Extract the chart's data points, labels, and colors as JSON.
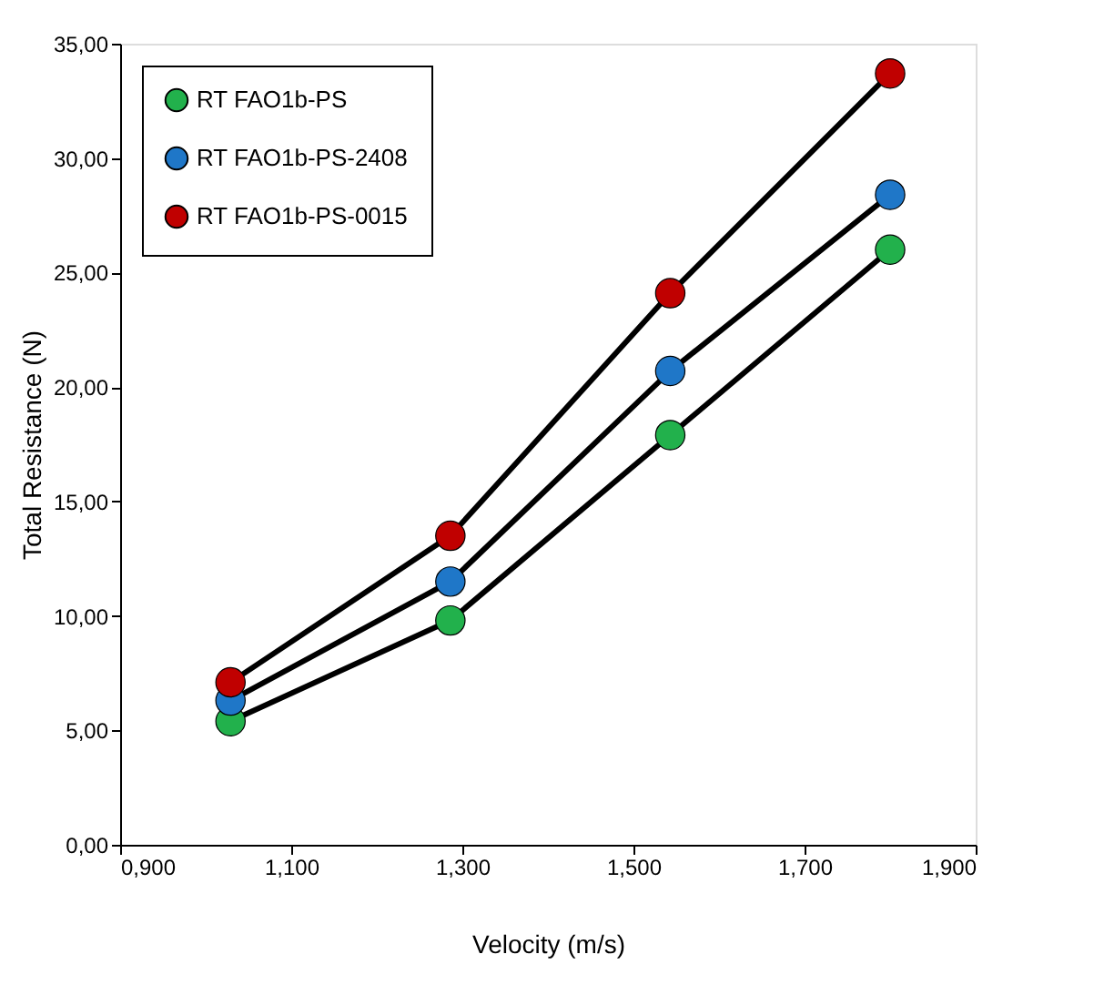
{
  "chart_data": {
    "type": "line",
    "xlabel": "Velocity (m/s)",
    "ylabel": "Total Resistance (N)",
    "x": [
      1.029,
      1.286,
      1.543,
      1.8
    ],
    "series": [
      {
        "name": "RT FAO1b-PS",
        "color": "#22b14c",
        "values": [
          5.4,
          9.8,
          17.9,
          26.0
        ]
      },
      {
        "name": "RT FAO1b-PS-2408",
        "color": "#1f77c8",
        "values": [
          6.3,
          11.5,
          20.7,
          28.4
        ]
      },
      {
        "name": "RT FAO1b-PS-0015",
        "color": "#c00000",
        "values": [
          7.1,
          13.5,
          24.1,
          33.7
        ]
      }
    ],
    "xlim": [
      0.9,
      1.9
    ],
    "xticks": [
      {
        "value": 0.9,
        "label": "0,900"
      },
      {
        "value": 1.1,
        "label": "1,100"
      },
      {
        "value": 1.3,
        "label": "1,300"
      },
      {
        "value": 1.5,
        "label": "1,500"
      },
      {
        "value": 1.7,
        "label": "1,700"
      },
      {
        "value": 1.9,
        "label": "1,900"
      }
    ],
    "ylim": [
      0,
      35
    ],
    "yticks": [
      {
        "value": 0,
        "label": "0,00"
      },
      {
        "value": 5,
        "label": "5,00"
      },
      {
        "value": 10,
        "label": "10,00"
      },
      {
        "value": 15,
        "label": "15,00"
      },
      {
        "value": 20,
        "label": "20,00"
      },
      {
        "value": 25,
        "label": "25,00"
      },
      {
        "value": 30,
        "label": "30,00"
      },
      {
        "value": 35,
        "label": "35,00"
      }
    ],
    "grid": false,
    "legend": "top left",
    "marker": "circle",
    "line_style": "solid"
  }
}
